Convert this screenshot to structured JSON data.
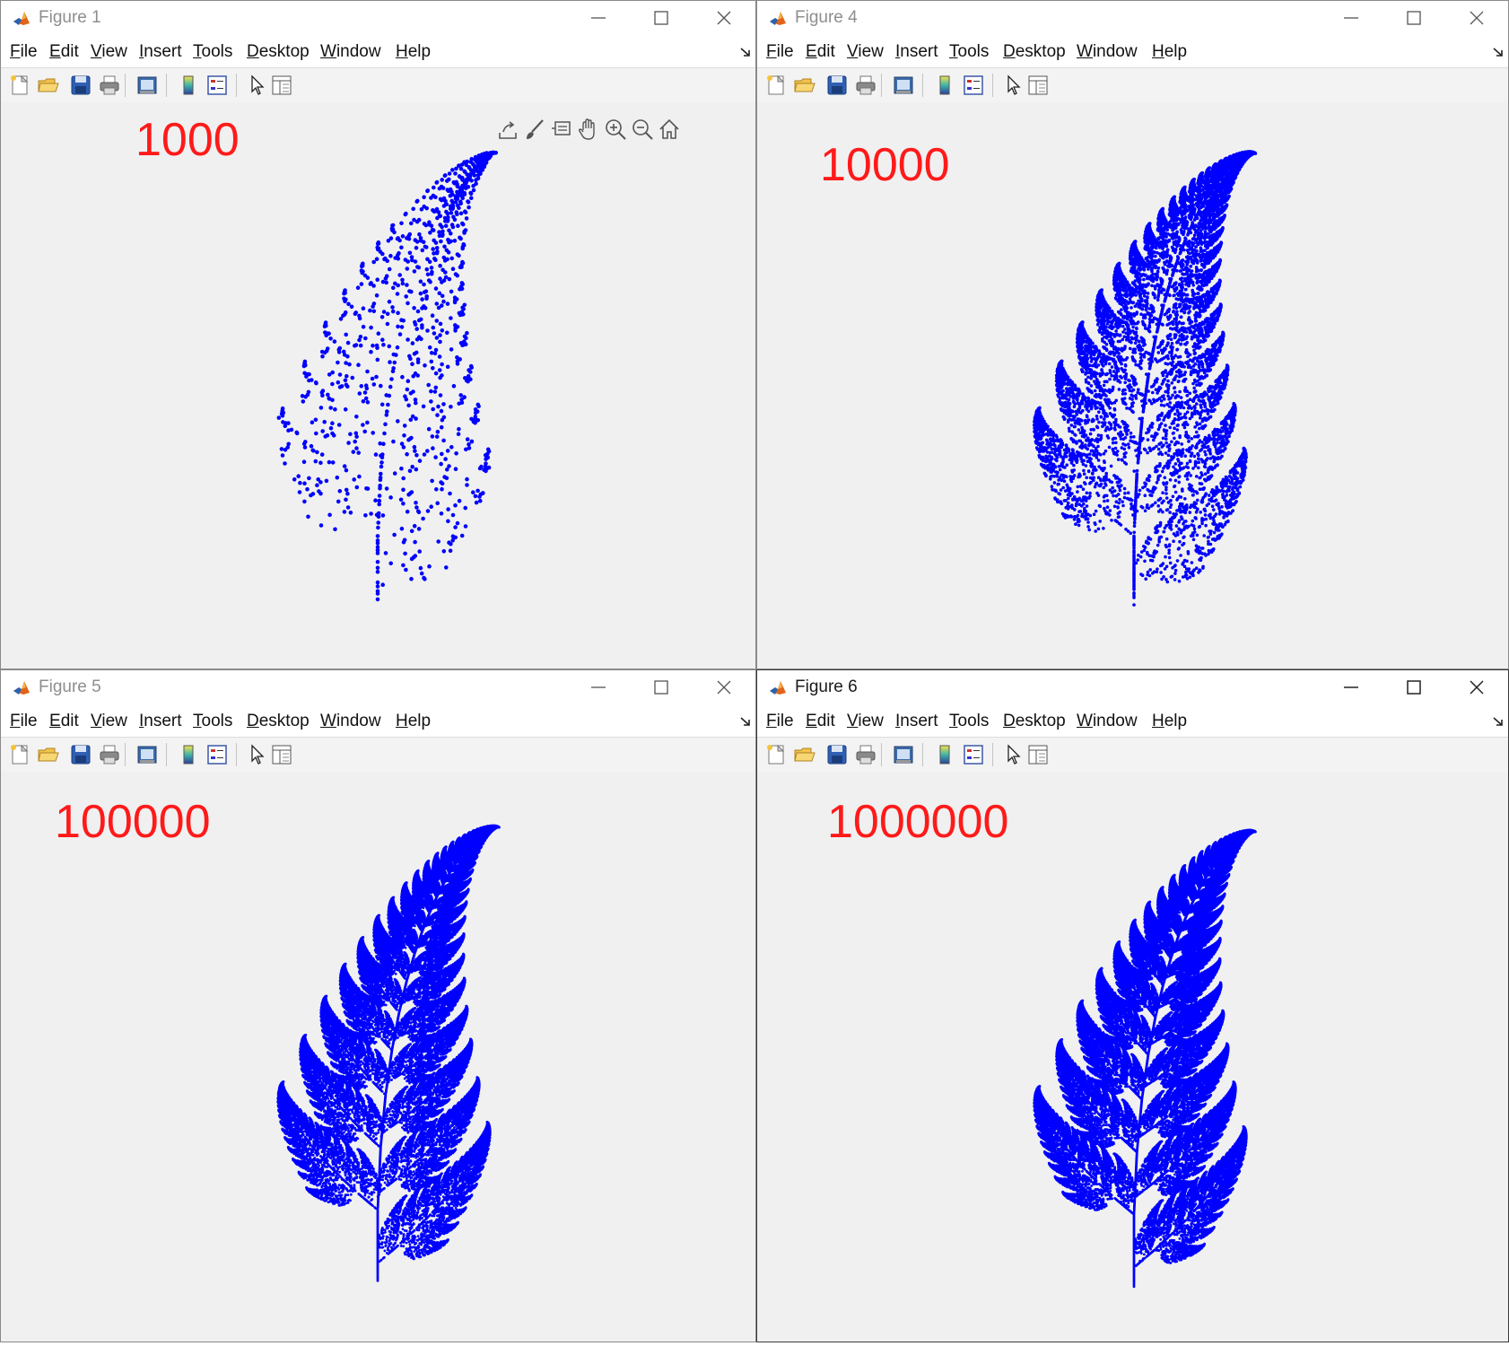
{
  "menu": [
    "File",
    "Edit",
    "View",
    "Insert",
    "Tools",
    "Desktop",
    "Window",
    "Help"
  ],
  "windows": [
    {
      "title": "Figure 1",
      "label": "1000",
      "points": 1000
    },
    {
      "title": "Figure 4",
      "label": "10000",
      "points": 10000
    },
    {
      "title": "Figure 5",
      "label": "100000",
      "points": 100000
    },
    {
      "title": "Figure 6",
      "label": "1000000",
      "points": 1000000,
      "active": true
    }
  ],
  "toolbar_icons": [
    "new-figure-icon",
    "open-file-icon",
    "save-icon",
    "print-icon",
    "print-preview-icon",
    "colorbar-icon",
    "legend-icon",
    "edit-plot-arrow-icon",
    "property-editor-icon"
  ],
  "axes_toolbar_icons": [
    "export-icon",
    "brush-icon",
    "datatip-icon",
    "pan-icon",
    "zoom-in-icon",
    "zoom-out-icon",
    "home-icon"
  ],
  "colors": {
    "points": "#0000ff",
    "label": "#ff1a1a",
    "canvas": "#f0f0f0"
  }
}
